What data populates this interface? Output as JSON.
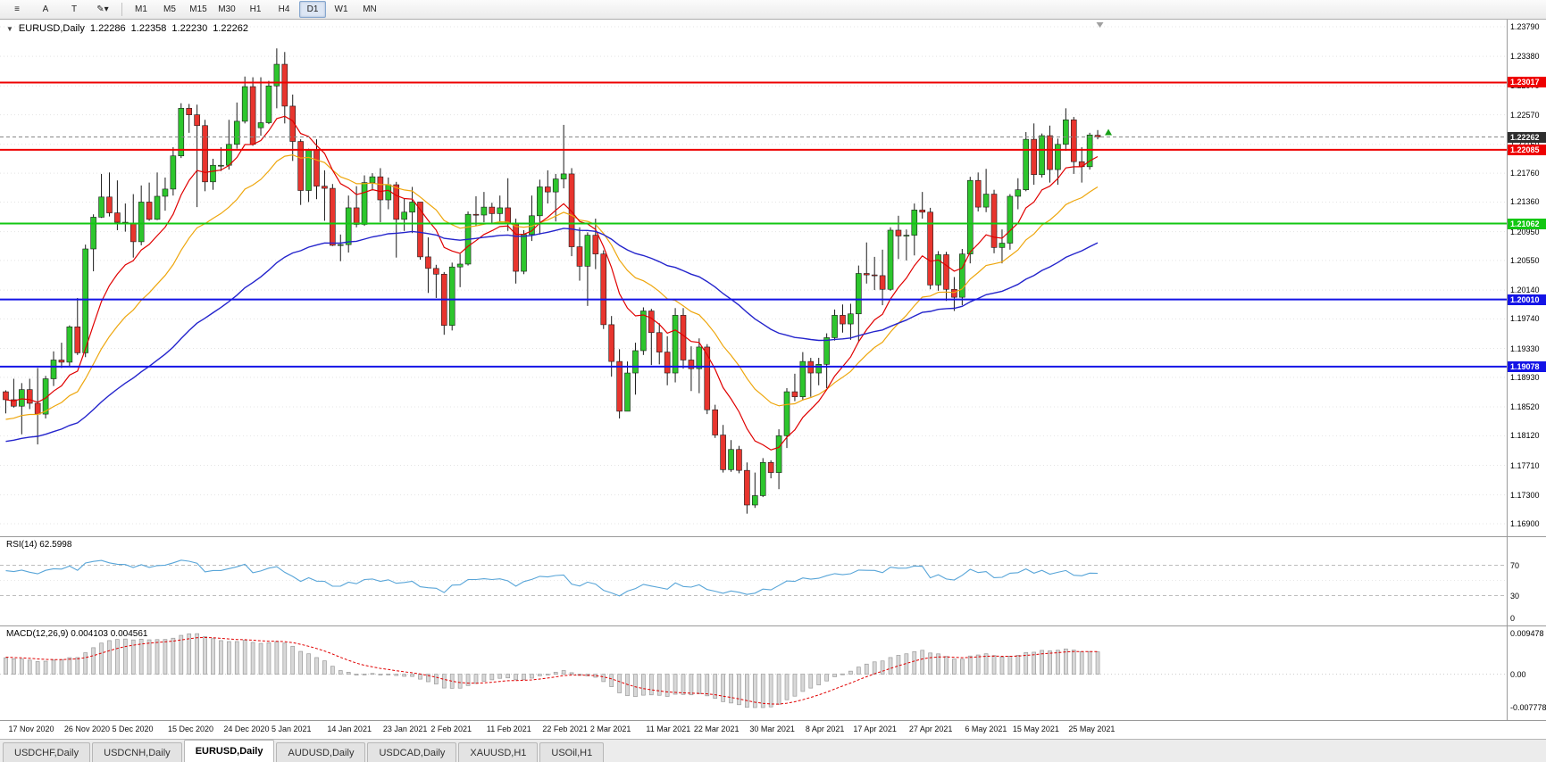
{
  "toolbar": {
    "icons": [
      {
        "name": "chart-list-icon",
        "glyph": "≡"
      },
      {
        "name": "cursor-tool-icon",
        "glyph": "A"
      },
      {
        "name": "text-tool-icon",
        "glyph": "T"
      },
      {
        "name": "line-style-tool-icon",
        "glyph": "✎▾"
      }
    ],
    "timeframes": [
      "M1",
      "M5",
      "M15",
      "M30",
      "H1",
      "H4",
      "D1",
      "W1",
      "MN"
    ],
    "active_timeframe": "D1"
  },
  "chart": {
    "title": {
      "collapse_icon": "▼",
      "symbol": "EURUSD,Daily",
      "open": "1.22286",
      "high": "1.22358",
      "low": "1.22230",
      "close": "1.22262"
    },
    "colors": {
      "candle_up": "#2dc62d",
      "candle_down": "#e8352e",
      "candle_border": "#1a1a1a",
      "wick": "#1a1a1a",
      "grid": "#e4e4e4",
      "current_price_line": "#888888"
    }
  },
  "chart_data": {
    "type": "candlestick",
    "symbol": "EURUSD",
    "period": "Daily",
    "y_range": {
      "min": 1.169,
      "max": 1.2379
    },
    "y_ticks": [
      "1.23790",
      "1.23380",
      "1.22970",
      "1.22570",
      "1.22160",
      "1.21760",
      "1.21360",
      "1.20950",
      "1.20550",
      "1.20140",
      "1.19740",
      "1.19330",
      "1.18930",
      "1.18520",
      "1.18120",
      "1.17710",
      "1.17300",
      "1.16900"
    ],
    "x_labels": [
      "17 Nov 2020",
      "26 Nov 2020",
      "5 Dec 2020",
      "15 Dec 2020",
      "24 Dec 2020",
      "5 Jan 2021",
      "14 Jan 2021",
      "23 Jan 2021",
      "2 Feb 2021",
      "11 Feb 2021",
      "22 Feb 2021",
      "2 Mar 2021",
      "11 Mar 2021",
      "22 Mar 2021",
      "30 Mar 2021",
      "8 Apr 2021",
      "17 Apr 2021",
      "27 Apr 2021",
      "6 May 2021",
      "15 May 2021",
      "25 May 2021"
    ],
    "ohlc": [
      [
        1.1873,
        1.1875,
        1.1843,
        1.1862
      ],
      [
        1.1862,
        1.1891,
        1.1851,
        1.1853
      ],
      [
        1.1853,
        1.1885,
        1.1814,
        1.1876
      ],
      [
        1.1876,
        1.1891,
        1.1849,
        1.1857
      ],
      [
        1.1857,
        1.1906,
        1.18,
        1.1842
      ],
      [
        1.1842,
        1.1895,
        1.1836,
        1.1891
      ],
      [
        1.1891,
        1.1929,
        1.1881,
        1.1917
      ],
      [
        1.1917,
        1.1941,
        1.1906,
        1.1914
      ],
      [
        1.1914,
        1.1965,
        1.1908,
        1.1963
      ],
      [
        1.1963,
        1.2003,
        1.1924,
        1.1927
      ],
      [
        1.1927,
        1.2077,
        1.1921,
        1.2071
      ],
      [
        1.2071,
        1.2119,
        1.204,
        1.2115
      ],
      [
        1.2115,
        1.2175,
        1.2114,
        1.2143
      ],
      [
        1.2143,
        1.2177,
        1.2116,
        1.2121
      ],
      [
        1.2121,
        1.2166,
        1.2097,
        1.2108
      ],
      [
        1.2108,
        1.2134,
        1.2095,
        1.2106
      ],
      [
        1.2106,
        1.2147,
        1.2059,
        1.2081
      ],
      [
        1.2081,
        1.2159,
        1.2076,
        1.2136
      ],
      [
        1.2136,
        1.2163,
        1.211,
        1.2112
      ],
      [
        1.2112,
        1.2177,
        1.2111,
        1.2144
      ],
      [
        1.2144,
        1.217,
        1.2124,
        1.2154
      ],
      [
        1.2154,
        1.2212,
        1.2145,
        1.22
      ],
      [
        1.22,
        1.2273,
        1.2197,
        1.2266
      ],
      [
        1.2266,
        1.2272,
        1.2232,
        1.2257
      ],
      [
        1.2257,
        1.2271,
        1.2129,
        1.2242
      ],
      [
        1.2242,
        1.225,
        1.2151,
        1.2164
      ],
      [
        1.2164,
        1.2196,
        1.2153,
        1.2187
      ],
      [
        1.2187,
        1.2212,
        1.2179,
        1.2187
      ],
      [
        1.2187,
        1.225,
        1.2181,
        1.2216
      ],
      [
        1.2216,
        1.2274,
        1.221,
        1.2248
      ],
      [
        1.2248,
        1.231,
        1.2245,
        1.2296
      ],
      [
        1.2296,
        1.2309,
        1.2214,
        1.2216
      ],
      [
        1.2239,
        1.2309,
        1.2228,
        1.2246
      ],
      [
        1.2246,
        1.2304,
        1.2244,
        1.2297
      ],
      [
        1.2297,
        1.2349,
        1.2266,
        1.2327
      ],
      [
        1.2327,
        1.2344,
        1.2245,
        1.2269
      ],
      [
        1.2269,
        1.2285,
        1.2193,
        1.222
      ],
      [
        1.222,
        1.2223,
        1.2132,
        1.2152
      ],
      [
        1.2152,
        1.221,
        1.2136,
        1.2208
      ],
      [
        1.2208,
        1.2223,
        1.214,
        1.2158
      ],
      [
        1.2158,
        1.218,
        1.211,
        1.2155
      ],
      [
        1.2155,
        1.2161,
        1.2075,
        1.2076
      ],
      [
        1.2076,
        1.2091,
        1.2054,
        1.2077
      ],
      [
        1.2077,
        1.2145,
        1.2066,
        1.2128
      ],
      [
        1.2128,
        1.2158,
        1.2101,
        1.2105
      ],
      [
        1.2105,
        1.2173,
        1.2103,
        1.2163
      ],
      [
        1.2163,
        1.2176,
        1.2152,
        1.2171
      ],
      [
        1.2171,
        1.2183,
        1.2108,
        1.2139
      ],
      [
        1.2139,
        1.217,
        1.2126,
        1.216
      ],
      [
        1.216,
        1.2164,
        1.2059,
        1.2112
      ],
      [
        1.2112,
        1.2141,
        1.2096,
        1.2122
      ],
      [
        1.2122,
        1.2157,
        1.2093,
        1.2136
      ],
      [
        1.2136,
        1.2136,
        1.2056,
        1.206
      ],
      [
        1.206,
        1.2087,
        1.201,
        1.2044
      ],
      [
        1.2044,
        1.2049,
        1.2003,
        1.2036
      ],
      [
        1.2036,
        1.2039,
        1.1952,
        1.1965
      ],
      [
        1.1965,
        1.2052,
        1.1958,
        1.2046
      ],
      [
        1.2046,
        1.2064,
        1.2018,
        1.205
      ],
      [
        1.205,
        1.2123,
        1.2048,
        1.2119
      ],
      [
        1.2119,
        1.2144,
        1.2103,
        1.2118
      ],
      [
        1.2118,
        1.215,
        1.2108,
        1.2129
      ],
      [
        1.2129,
        1.2135,
        1.2107,
        1.212
      ],
      [
        1.212,
        1.2145,
        1.2109,
        1.2128
      ],
      [
        1.2128,
        1.2169,
        1.2096,
        1.2106
      ],
      [
        1.2106,
        1.2113,
        1.2023,
        1.204
      ],
      [
        1.204,
        1.2097,
        1.2036,
        1.2091
      ],
      [
        1.2091,
        1.2145,
        1.2082,
        1.2117
      ],
      [
        1.2117,
        1.2167,
        1.2091,
        1.2157
      ],
      [
        1.2157,
        1.218,
        1.2134,
        1.215
      ],
      [
        1.215,
        1.2175,
        1.2109,
        1.2168
      ],
      [
        1.2168,
        1.2243,
        1.2155,
        1.2175
      ],
      [
        1.2175,
        1.2183,
        1.2061,
        1.2074
      ],
      [
        1.2074,
        1.2101,
        1.2027,
        1.2047
      ],
      [
        1.2047,
        1.2094,
        1.1992,
        1.209
      ],
      [
        1.209,
        1.2113,
        1.2043,
        1.2064
      ],
      [
        1.2064,
        1.2069,
        1.196,
        1.1966
      ],
      [
        1.1966,
        1.1978,
        1.1894,
        1.1915
      ],
      [
        1.1915,
        1.1932,
        1.1836,
        1.1846
      ],
      [
        1.1846,
        1.1915,
        1.1846,
        1.1899
      ],
      [
        1.1899,
        1.1941,
        1.1869,
        1.193
      ],
      [
        1.193,
        1.199,
        1.1924,
        1.1985
      ],
      [
        1.1985,
        1.1988,
        1.191,
        1.1955
      ],
      [
        1.1955,
        1.1968,
        1.1911,
        1.1928
      ],
      [
        1.1928,
        1.195,
        1.1882,
        1.1899
      ],
      [
        1.1899,
        1.1989,
        1.1886,
        1.1979
      ],
      [
        1.1979,
        1.1989,
        1.1905,
        1.1917
      ],
      [
        1.1917,
        1.1936,
        1.1874,
        1.1905
      ],
      [
        1.1905,
        1.1947,
        1.1871,
        1.1935
      ],
      [
        1.1935,
        1.1939,
        1.1842,
        1.1848
      ],
      [
        1.1848,
        1.1855,
        1.1809,
        1.1813
      ],
      [
        1.1813,
        1.1827,
        1.1761,
        1.1765
      ],
      [
        1.1765,
        1.1806,
        1.1762,
        1.1793
      ],
      [
        1.1793,
        1.1798,
        1.176,
        1.1764
      ],
      [
        1.1764,
        1.1775,
        1.1704,
        1.1716
      ],
      [
        1.1716,
        1.1761,
        1.1712,
        1.1729
      ],
      [
        1.1729,
        1.1781,
        1.1727,
        1.1775
      ],
      [
        1.1775,
        1.1778,
        1.1753,
        1.1761
      ],
      [
        1.1761,
        1.1821,
        1.1738,
        1.1812
      ],
      [
        1.1812,
        1.1878,
        1.1795,
        1.1873
      ],
      [
        1.1873,
        1.1898,
        1.186,
        1.1866
      ],
      [
        1.1866,
        1.1928,
        1.1861,
        1.1915
      ],
      [
        1.1915,
        1.192,
        1.1866,
        1.1899
      ],
      [
        1.1899,
        1.192,
        1.1882,
        1.1911
      ],
      [
        1.1911,
        1.1954,
        1.1878,
        1.1948
      ],
      [
        1.1948,
        1.1987,
        1.1944,
        1.1979
      ],
      [
        1.1979,
        1.1994,
        1.1955,
        1.1967
      ],
      [
        1.1967,
        1.1995,
        1.1945,
        1.1981
      ],
      [
        1.1981,
        1.2048,
        1.1942,
        1.2037
      ],
      [
        1.2037,
        1.208,
        1.2023,
        1.2035
      ],
      [
        1.2035,
        1.206,
        1.2014,
        1.2034
      ],
      [
        1.2034,
        1.207,
        1.1993,
        1.2015
      ],
      [
        1.2015,
        1.2101,
        1.2013,
        1.2097
      ],
      [
        1.2097,
        1.2117,
        1.2057,
        1.2089
      ],
      [
        1.2089,
        1.2098,
        1.2055,
        1.209
      ],
      [
        1.209,
        1.2134,
        1.2062,
        1.2125
      ],
      [
        1.2125,
        1.215,
        1.2113,
        1.2122
      ],
      [
        1.2122,
        1.2128,
        1.2015,
        1.2021
      ],
      [
        1.2021,
        1.2068,
        1.2013,
        1.2063
      ],
      [
        1.2063,
        1.2067,
        1.1999,
        1.2015
      ],
      [
        1.2015,
        1.2032,
        1.1985,
        1.2004
      ],
      [
        1.2004,
        1.2071,
        1.1993,
        1.2064
      ],
      [
        1.2064,
        1.2171,
        1.2051,
        1.2166
      ],
      [
        1.2166,
        1.2177,
        1.2123,
        1.2129
      ],
      [
        1.2129,
        1.2182,
        1.2122,
        1.2147
      ],
      [
        1.2147,
        1.2153,
        1.2065,
        1.2073
      ],
      [
        1.2073,
        1.2098,
        1.2051,
        1.2079
      ],
      [
        1.2079,
        1.2147,
        1.207,
        1.2144
      ],
      [
        1.2144,
        1.2169,
        1.2126,
        1.2153
      ],
      [
        1.2153,
        1.2233,
        1.2151,
        1.2223
      ],
      [
        1.2223,
        1.2245,
        1.216,
        1.2174
      ],
      [
        1.2174,
        1.2231,
        1.217,
        1.2228
      ],
      [
        1.2228,
        1.2242,
        1.2163,
        1.2181
      ],
      [
        1.2181,
        1.2224,
        1.216,
        1.2216
      ],
      [
        1.2216,
        1.2266,
        1.2207,
        1.225
      ],
      [
        1.225,
        1.2254,
        1.2175,
        1.2192
      ],
      [
        1.2192,
        1.2212,
        1.2163,
        1.2185
      ],
      [
        1.2185,
        1.2232,
        1.2181,
        1.2229
      ],
      [
        1.22286,
        1.22358,
        1.2223,
        1.22262
      ]
    ],
    "moving_averages": [
      {
        "name": "fast",
        "period": 10,
        "color": "#e00000"
      },
      {
        "name": "mid",
        "period": 21,
        "color": "#eea60c"
      },
      {
        "name": "slow",
        "period": 55,
        "color": "#2424cc"
      }
    ],
    "horizontal_levels": [
      {
        "value": 1.23017,
        "label": "1.23017",
        "color": "#ee0000"
      },
      {
        "value": 1.22085,
        "label": "1.22085",
        "color": "#ee0000"
      },
      {
        "value": 1.21062,
        "label": "1.21062",
        "color": "#12c712"
      },
      {
        "value": 1.2001,
        "label": "1.20010",
        "color": "#1414e6"
      },
      {
        "value": 1.19078,
        "label": "1.19078",
        "color": "#1414e6"
      }
    ],
    "current_price": {
      "value": 1.22262,
      "label": "1.22262",
      "badge_color": "#2e2e2e"
    },
    "indicators": [
      {
        "name": "RSI",
        "label": "RSI(14) 62.5998",
        "color": "#58a5d8",
        "levels": [
          {
            "value": 70,
            "label": "70"
          },
          {
            "value": 30,
            "label": "30"
          },
          {
            "value": 0,
            "label": "0"
          }
        ]
      },
      {
        "name": "MACD",
        "label": "MACD(12,26,9) 0.004103 0.004561",
        "histogram_color": "#d8d8d8",
        "signal_color": "#e00000",
        "y_ticks": [
          {
            "value": 0.009478,
            "label": "0.009478"
          },
          {
            "value": 0,
            "label": "0.00"
          },
          {
            "value": -0.007778,
            "label": "-0.007778"
          }
        ]
      }
    ]
  },
  "tabs": {
    "items": [
      {
        "label": "USDCHF,Daily"
      },
      {
        "label": "USDCNH,Daily"
      },
      {
        "label": "EURUSD,Daily",
        "active": true
      },
      {
        "label": "AUDUSD,Daily"
      },
      {
        "label": "USDCAD,Daily"
      },
      {
        "label": "XAUUSD,H1"
      },
      {
        "label": "USOil,H1"
      }
    ]
  }
}
